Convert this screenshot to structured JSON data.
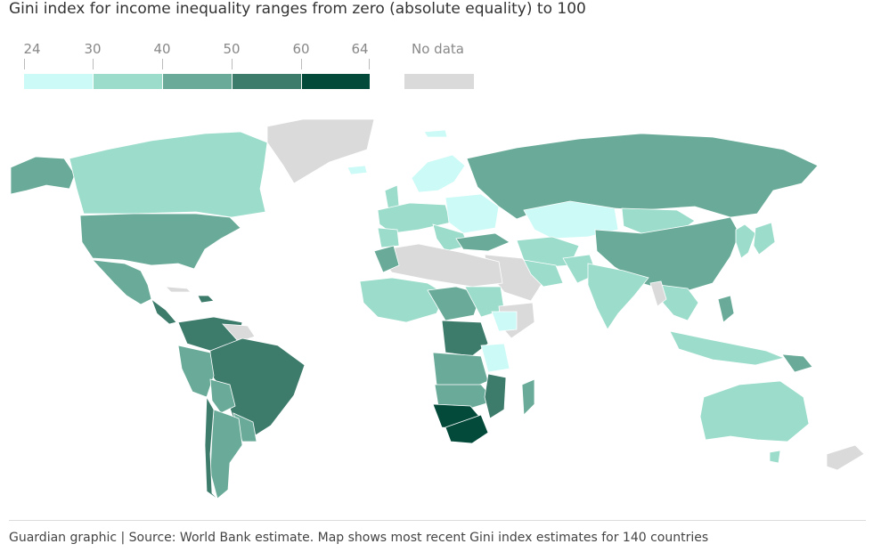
{
  "title": "Gini index for income inequality ranges from zero (absolute equality) to 100",
  "legend": {
    "ticks": [
      "24",
      "30",
      "40",
      "50",
      "60",
      "64"
    ],
    "bins": [
      {
        "range": [
          24,
          30
        ],
        "color": "#cbfaf7"
      },
      {
        "range": [
          30,
          40
        ],
        "color": "#9bdcca"
      },
      {
        "range": [
          40,
          50
        ],
        "color": "#69ab98"
      },
      {
        "range": [
          50,
          60
        ],
        "color": "#3d7b6b"
      },
      {
        "range": [
          60,
          64
        ],
        "color": "#034a3b"
      }
    ],
    "no_data_label": "No data",
    "no_data_color": "#dadada"
  },
  "footer": "Guardian graphic | Source: World Bank estimate. Map shows most recent Gini index estimates for 140 countries"
}
